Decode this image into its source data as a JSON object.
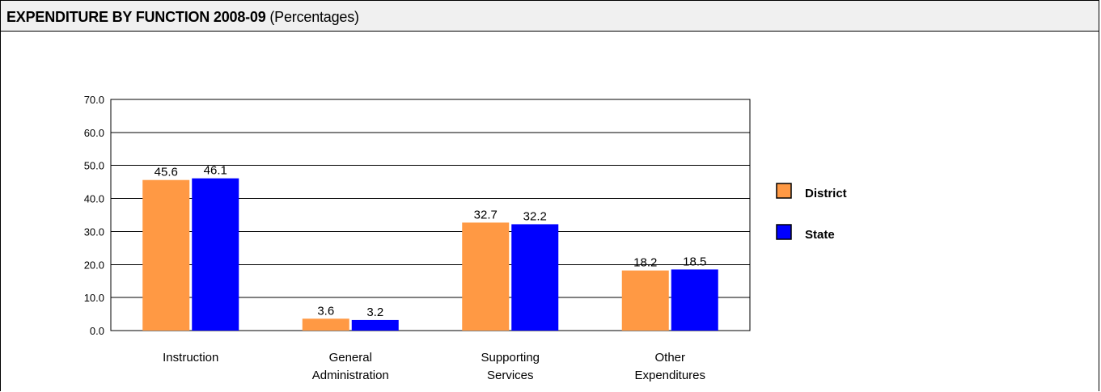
{
  "header": {
    "title_bold": "EXPENDITURE BY FUNCTION 2008-09",
    "title_rest": "(Percentages)"
  },
  "colors": {
    "district": "#ff9944",
    "state": "#0000ff",
    "header_bg": "#f0f0f0"
  },
  "chart_data": {
    "type": "bar",
    "categories": [
      [
        "Instruction"
      ],
      [
        "General",
        "Administration"
      ],
      [
        "Supporting",
        "Services"
      ],
      [
        "Other",
        "Expenditures"
      ]
    ],
    "series": [
      {
        "name": "District",
        "values": [
          45.6,
          3.6,
          32.7,
          18.2
        ]
      },
      {
        "name": "State",
        "values": [
          46.1,
          3.2,
          32.2,
          18.5
        ]
      }
    ],
    "ylim": [
      0,
      70
    ],
    "yticks": [
      "0.0",
      "10.0",
      "20.0",
      "30.0",
      "40.0",
      "50.0",
      "60.0",
      "70.0"
    ],
    "grid": true,
    "legend_position": "right"
  }
}
